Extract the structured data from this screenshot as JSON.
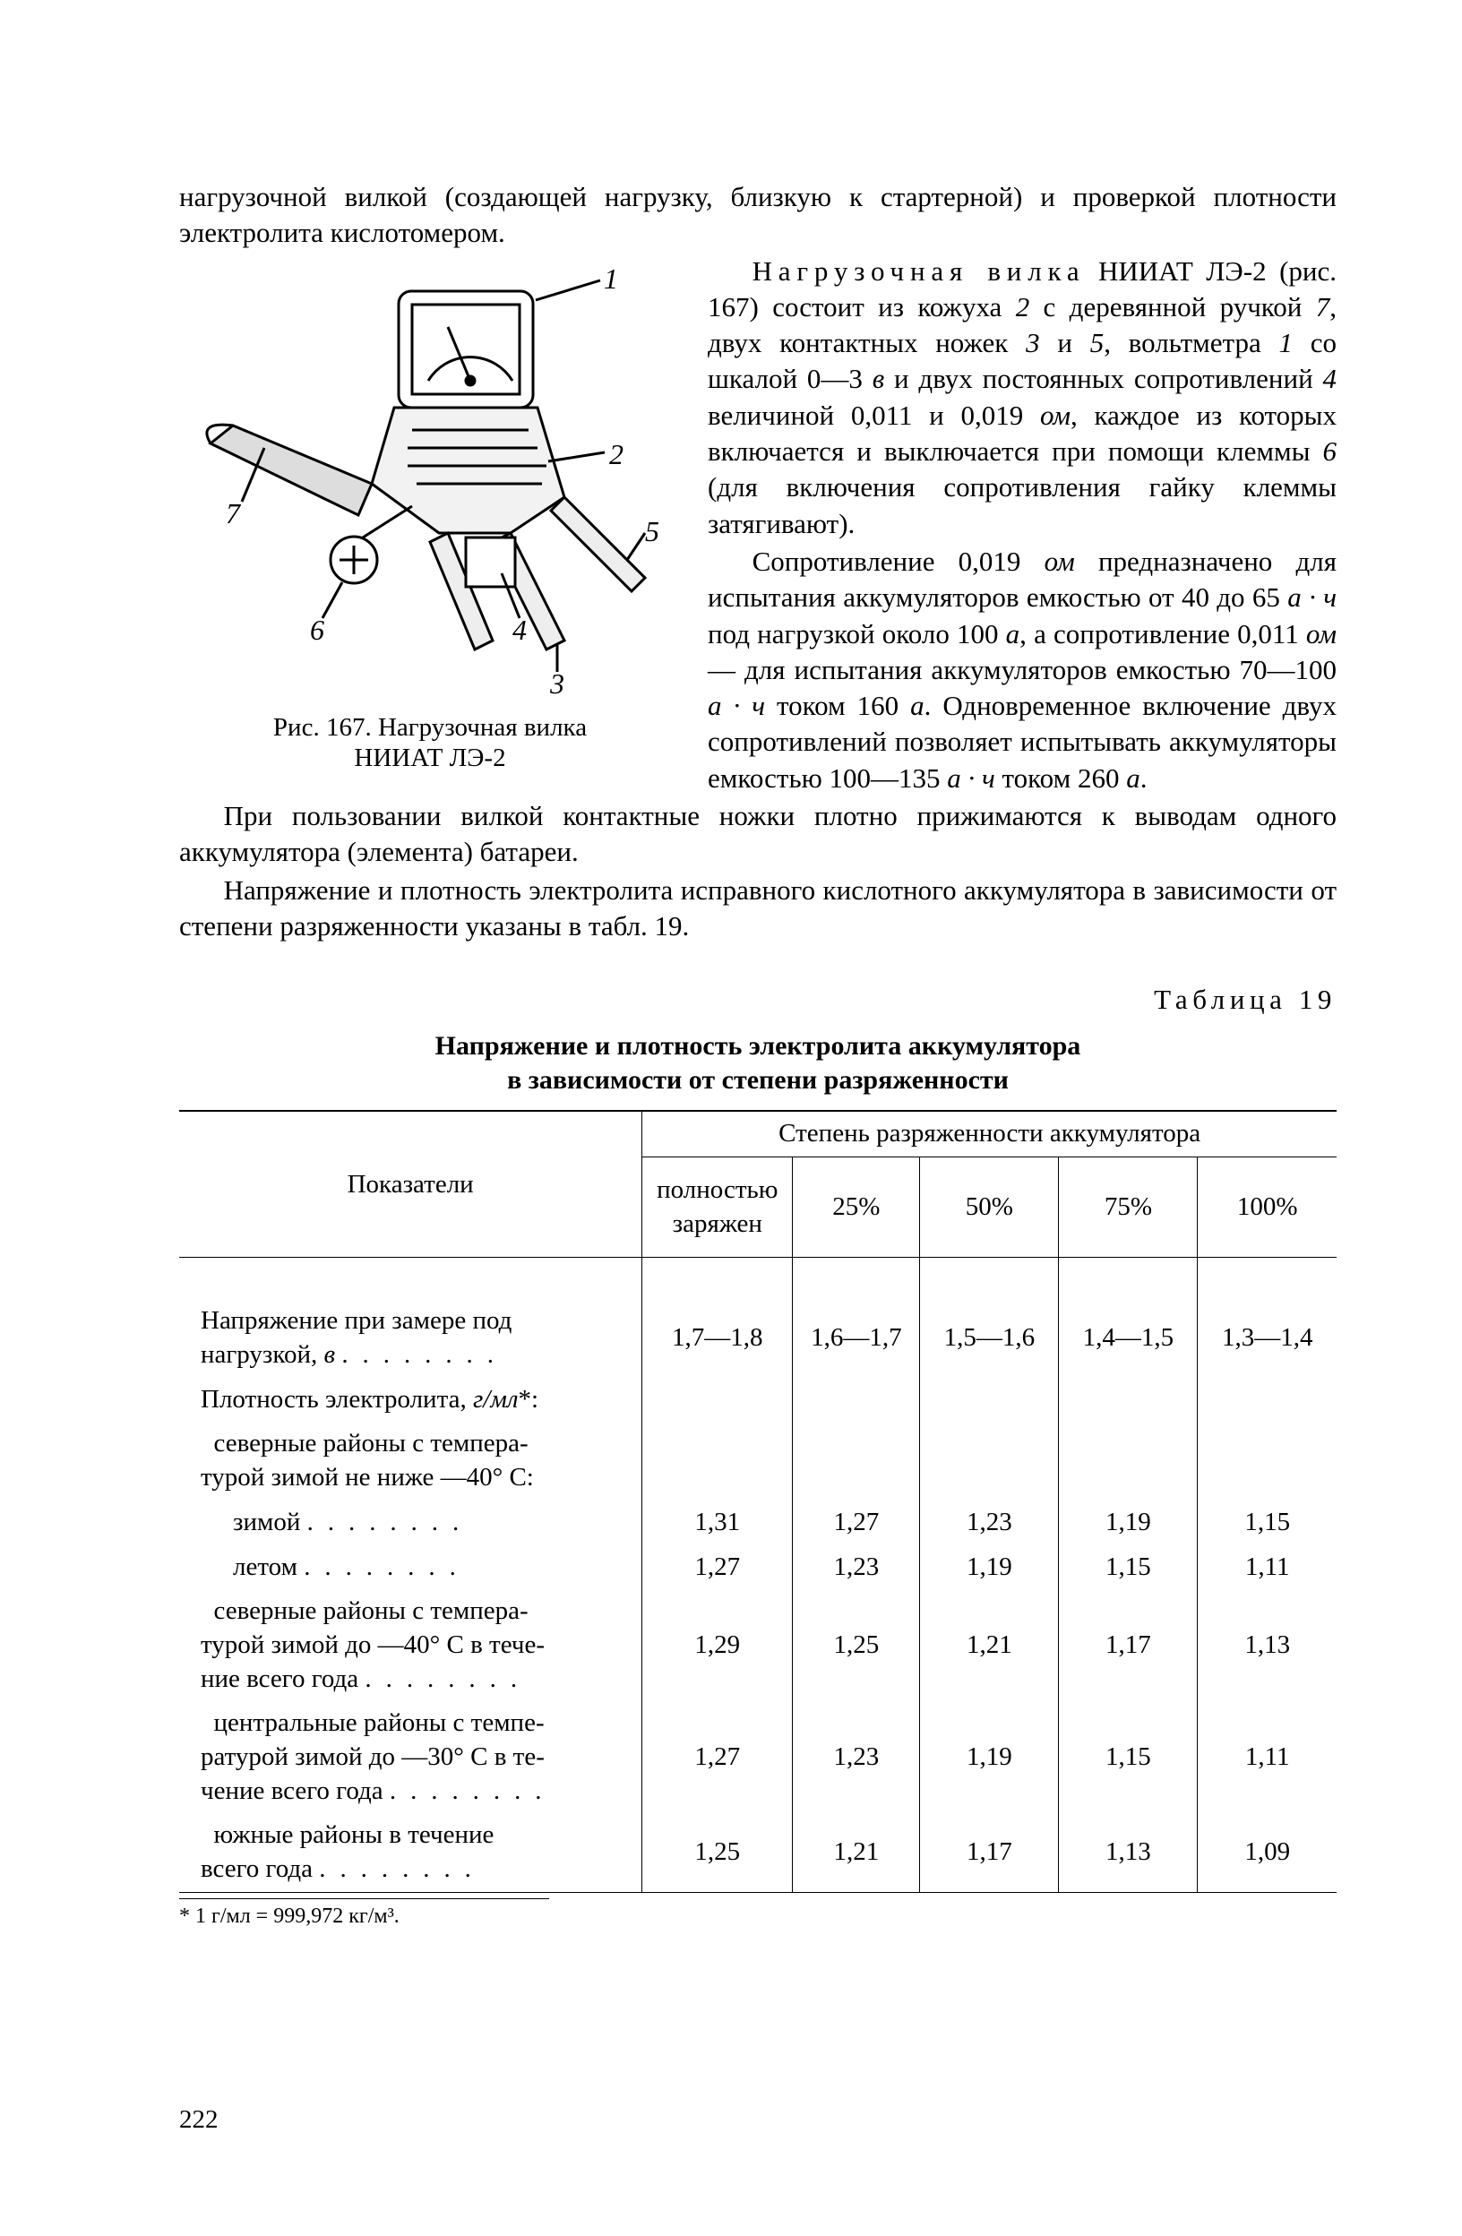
{
  "text": {
    "p1": "нагрузочной вилкой (создающей нагрузку, близкую к стартерной) и проверкой плотности электролита кислотомером.",
    "p2a": "Нагрузочная вилка",
    "p2b": " НИИАТ ЛЭ-2 (рис. 167) состоит из кожуха ",
    "p2c": " с деревянной ручкой ",
    "p2d": ", двух контактных ножек ",
    "p2e": " и ",
    "p2f": ", вольтметра ",
    "p2g": " со шкалой 0—3 ",
    "p2h": " и двух постоянных сопротивлений ",
    "p2i": " величиной 0,011 и 0,019 ",
    "p2j": ", каждое из которых включается и выключается при помощи клеммы ",
    "p2k": " (для включения сопротивления гайку клеммы затягивают).",
    "p3a": "Сопротивление 0,019 ",
    "p3b": " предназначено для испытания аккумуляторов емкостью от 40 до 65 ",
    "p3c": " под нагрузкой около 100 ",
    "p3d": ", а сопротивление 0,011 ",
    "p3e": " — для испытания аккумуляторов емкостью 70—100 ",
    "p3f": " током 160 ",
    "p3g": ". Одновременное включение двух сопротивлений позволяет испытывать аккумуляторы емкостью 100—135 ",
    "p3h": " током 260 ",
    "p3i": ".",
    "p4": "При пользовании вилкой контактные ножки плотно прижимаются к выводам одного аккумулятора (элемента) батареи.",
    "p5": "Напряжение и плотность электролита исправного кислотного аккумулятора в зависимости от степени разряженности указаны в табл. 19.",
    "unit_om": "ом",
    "unit_ah": "а · ч",
    "unit_a": "а",
    "unit_v": "в",
    "n1": "1",
    "n2": "2",
    "n3": "3",
    "n4": "4",
    "n5": "5",
    "n6": "6",
    "n7": "7"
  },
  "figure": {
    "caption_l1": "Рис. 167. Нагрузочная вилка",
    "caption_l2": "НИИАТ ЛЭ-2",
    "callouts": {
      "c1": "1",
      "c2": "2",
      "c3": "3",
      "c4": "4",
      "c5": "5",
      "c6": "6",
      "c7": "7"
    }
  },
  "table": {
    "label": "Таблица 19",
    "title_l1": "Напряжение и плотность электролита аккумулятора",
    "title_l2": "в зависимости от степени разряженности",
    "header_left": "Показатели",
    "header_group": "Степень разряженности аккумулятора",
    "columns": [
      "полностью заряжен",
      "25%",
      "50%",
      "75%",
      "100%"
    ],
    "rows": [
      {
        "label_lines": [
          "Напряжение при замере под",
          "нагрузкой, <span class='ital'>в</span> <span class='leaders'></span>"
        ],
        "cells": [
          "1,7—1,8",
          "1,6—1,7",
          "1,5—1,6",
          "1,4—1,5",
          "1,3—1,4"
        ]
      },
      {
        "label_lines": [
          "Плотность электролита, <span class='ital'>г/мл</span>*:"
        ],
        "cells": [
          "",
          "",
          "",
          "",
          ""
        ]
      },
      {
        "label_lines": [
          "&nbsp;&nbsp;северные районы с темпера-",
          "турой зимой не ниже —40° С:"
        ],
        "cells": [
          "",
          "",
          "",
          "",
          ""
        ]
      },
      {
        "label_lines": [
          "<span class='row-sub'>зимой <span class='leaders'></span></span>"
        ],
        "cells": [
          "1,31",
          "1,27",
          "1,23",
          "1,19",
          "1,15"
        ]
      },
      {
        "label_lines": [
          "<span class='row-sub'>летом <span class='leaders'></span></span>"
        ],
        "cells": [
          "1,27",
          "1,23",
          "1,19",
          "1,15",
          "1,11"
        ]
      },
      {
        "label_lines": [
          "&nbsp;&nbsp;северные районы с темпера-",
          "турой зимой до —40° С в тече-",
          "ние всего года <span class='leaders'></span>"
        ],
        "cells": [
          "1,29",
          "1,25",
          "1,21",
          "1,17",
          "1,13"
        ]
      },
      {
        "label_lines": [
          "&nbsp;&nbsp;центральные районы с темпе-",
          "ратурой зимой до —30° С в те-",
          "чение всего года <span class='leaders'></span>"
        ],
        "cells": [
          "1,27",
          "1,23",
          "1,19",
          "1,15",
          "1,11"
        ]
      },
      {
        "label_lines": [
          "&nbsp;&nbsp;южные районы в течение",
          "всего года <span class='leaders'></span>"
        ],
        "cells": [
          "1,25",
          "1,21",
          "1,17",
          "1,13",
          "1,09"
        ]
      }
    ],
    "footnote": "* 1 г/мл = 999,972 кг/м³.",
    "col_widths": [
      "40%",
      "13%",
      "11%",
      "12%",
      "12%",
      "12%"
    ]
  },
  "page_number": "222"
}
